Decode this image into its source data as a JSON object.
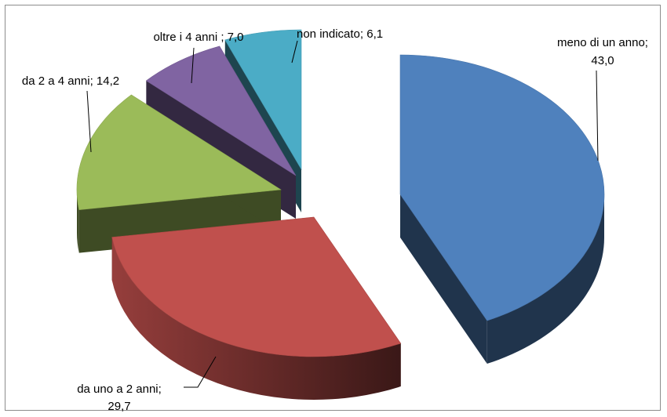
{
  "chart_data": {
    "type": "pie",
    "style": "3d-exploded",
    "title": "",
    "legend": "none",
    "slices": [
      {
        "label": "meno di un anno",
        "value": 43.0,
        "display_value": "43,0",
        "color": "#4F81BD"
      },
      {
        "label": "da uno a 2 anni",
        "value": 29.7,
        "display_value": "29,7",
        "color": "#C0504D"
      },
      {
        "label": "da 2 a 4 anni",
        "value": 14.2,
        "display_value": "14,2",
        "color": "#9BBB59"
      },
      {
        "label": "oltre i 4 anni ",
        "value": 7.0,
        "display_value": "7,0",
        "color": "#8064A2"
      },
      {
        "label": "non indicato",
        "value": 6.1,
        "display_value": "6,1",
        "color": "#4BACC6"
      }
    ],
    "data_labels": [
      {
        "lines": [
          "meno di un anno;",
          "43,0"
        ]
      },
      {
        "lines": [
          "da uno a 2 anni;",
          "29,7"
        ]
      },
      {
        "lines": [
          "da 2 a 4 anni; 14,2"
        ]
      },
      {
        "lines": [
          "oltre i 4 anni ; 7,0"
        ]
      },
      {
        "lines": [
          "non indicato; 6,1"
        ]
      }
    ]
  }
}
